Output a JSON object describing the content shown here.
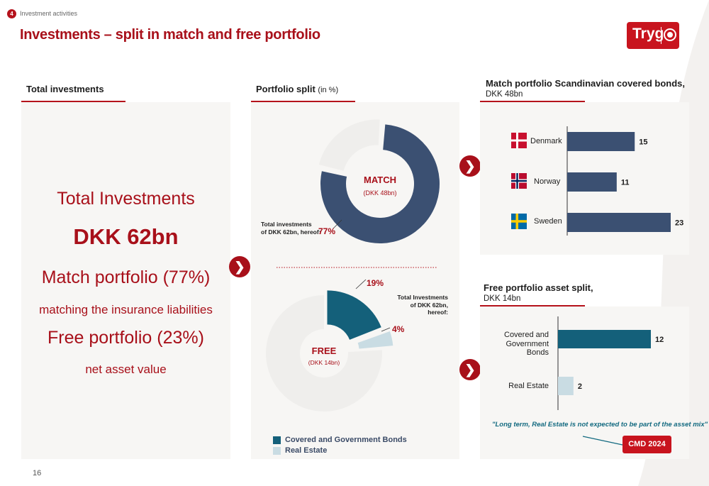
{
  "header": {
    "section_number": "4",
    "section_label": "Investment activities",
    "title": "Investments – split in match and free portfolio",
    "logo_text": "Tryg"
  },
  "total_investments": {
    "heading": "Total investments",
    "line1": "Total Investments",
    "line2": "DKK 62bn",
    "line3": "Match portfolio (77%)",
    "line4": "matching the insurance liabilities",
    "line5": "Free portfolio (23%)",
    "line6": "net asset value"
  },
  "portfolio_split": {
    "heading": "Portfolio split",
    "heading_suffix": "(in %)",
    "match_label": "MATCH",
    "match_sub": "(DKK 48bn)",
    "match_note_line1": "Total investments",
    "match_note_line2": "of DKK 62bn, hereof:",
    "match_pct": "77%",
    "free_label": "FREE",
    "free_sub": "(DKK 14bn)",
    "free_note_line1": "Total Investments",
    "free_note_line2": "of DKK 62bn, hereof:",
    "free_pct_bonds": "19%",
    "free_pct_real_estate": "4%",
    "legend": [
      {
        "label": "Covered and Government Bonds",
        "color": "#14607a"
      },
      {
        "label": "Real Estate",
        "color": "#c9dce3"
      }
    ]
  },
  "match_bonds": {
    "heading": "Match portfolio Scandinavian covered bonds,",
    "subheading": "DKK 48bn"
  },
  "free_split": {
    "heading": "Free portfolio asset split,",
    "subheading": "DKK 14bn",
    "quote": "\"Long term, Real Estate is not expected to be part of the asset mix\"",
    "badge": "CMD 2024"
  },
  "footer": {
    "page_number": "16"
  },
  "colors": {
    "brand_red": "#a8101a",
    "navy": "#3b5072",
    "teal": "#14607a",
    "light_blue": "#c9dce3",
    "panel_bg": "#f7f6f4"
  },
  "chart_data": [
    {
      "type": "pie",
      "title": "MATCH",
      "labels": [
        "Match portfolio",
        "Free portfolio"
      ],
      "values": [
        77,
        23
      ]
    },
    {
      "type": "pie",
      "title": "FREE",
      "labels": [
        "Covered and Government Bonds",
        "Real Estate",
        "Match portfolio"
      ],
      "values": [
        19,
        4,
        77
      ]
    },
    {
      "type": "bar",
      "orientation": "horizontal",
      "categories": [
        "Denmark",
        "Norway",
        "Sweden"
      ],
      "values": [
        15,
        11,
        23
      ],
      "xlim": [
        0,
        23
      ]
    },
    {
      "type": "bar",
      "orientation": "horizontal",
      "categories": [
        "Covered and Government Bonds",
        "Real Estate"
      ],
      "category_lines": [
        [
          "Covered and",
          "Government Bonds"
        ],
        [
          "Real Estate"
        ]
      ],
      "values": [
        12,
        2
      ],
      "colors": [
        "#14607a",
        "#c9dce3"
      ],
      "xlim": [
        0,
        12
      ]
    }
  ]
}
